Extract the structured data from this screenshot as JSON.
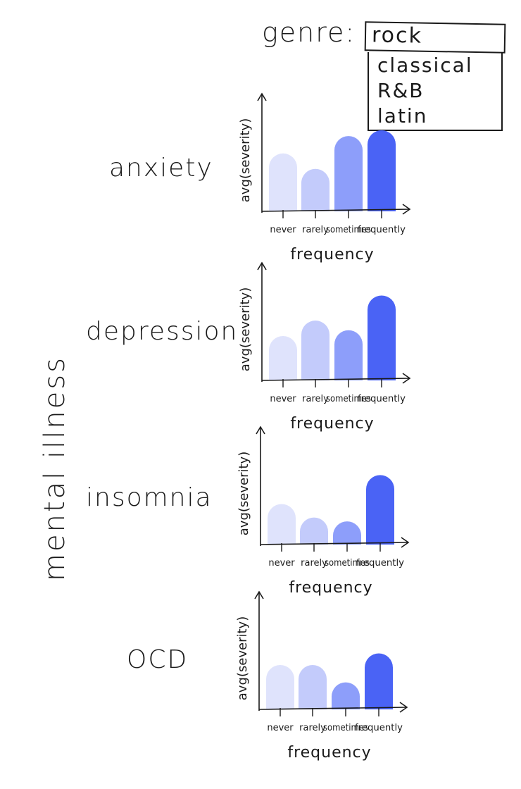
{
  "genre": {
    "label": "genre:",
    "selected": "rock",
    "options": [
      "classical",
      "R&B",
      "latin"
    ]
  },
  "group_label": "mental illness",
  "colors": [
    "#dfe3fc",
    "#c3cbfb",
    "#8d9efa",
    "#4a63f5"
  ],
  "chart_data": [
    {
      "type": "bar",
      "title": "anxiety",
      "categories": [
        "never",
        "rarely",
        "sometimes",
        "frequently"
      ],
      "values": [
        3.0,
        2.2,
        3.9,
        4.2
      ],
      "xlabel": "frequency",
      "ylabel": "avg(severity)",
      "ylim": [
        0,
        5
      ]
    },
    {
      "type": "bar",
      "title": "depression",
      "categories": [
        "never",
        "rarely",
        "sometimes",
        "frequently"
      ],
      "values": [
        2.3,
        3.1,
        2.6,
        4.4
      ],
      "xlabel": "frequency",
      "ylabel": "avg(severity)",
      "ylim": [
        0,
        5
      ]
    },
    {
      "type": "bar",
      "title": "insomnia",
      "categories": [
        "never",
        "rarely",
        "sometimes",
        "frequently"
      ],
      "values": [
        2.1,
        1.4,
        1.2,
        3.6
      ],
      "xlabel": "frequency",
      "ylabel": "avg(severity)",
      "ylim": [
        0,
        5
      ]
    },
    {
      "type": "bar",
      "title": "OCD",
      "categories": [
        "never",
        "rarely",
        "sometimes",
        "frequently"
      ],
      "values": [
        2.3,
        2.3,
        1.4,
        2.9
      ],
      "xlabel": "frequency",
      "ylabel": "avg(severity)",
      "ylim": [
        0,
        5
      ]
    }
  ]
}
